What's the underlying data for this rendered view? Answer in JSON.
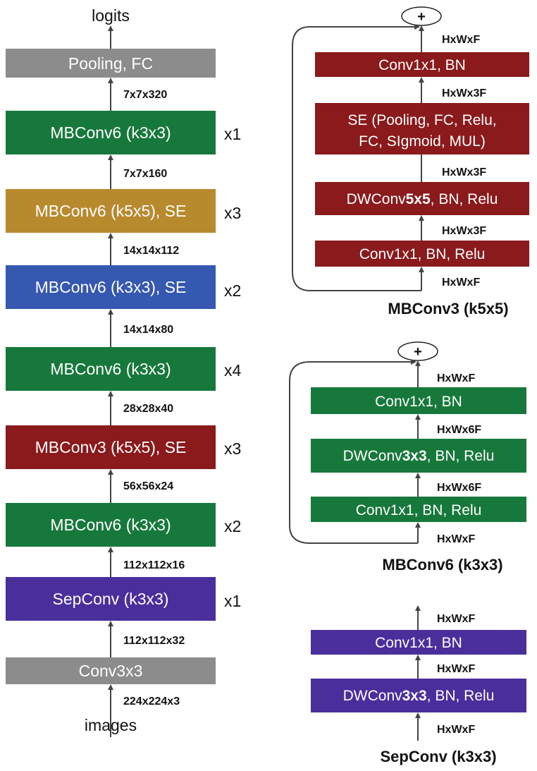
{
  "colors": {
    "gray": "#8c8c8c",
    "green": "#17783c",
    "gold": "#b88a2e",
    "blue": "#3558b0",
    "red": "#8a1a1c",
    "purple": "#4a2e9c"
  },
  "main": {
    "output": "logits",
    "input": "images",
    "blocks": [
      {
        "label": "Pooling, FC",
        "repeat": ""
      },
      {
        "label": "MBConv6 (k3x3)",
        "repeat": "x1"
      },
      {
        "label": "MBConv6 (k5x5), SE",
        "repeat": "x3"
      },
      {
        "label": "MBConv6 (k3x3), SE",
        "repeat": "x2"
      },
      {
        "label": "MBConv6 (k3x3)",
        "repeat": "x4"
      },
      {
        "label": "MBConv3 (k5x5), SE",
        "repeat": "x3"
      },
      {
        "label": "MBConv6 (k3x3)",
        "repeat": "x2"
      },
      {
        "label": "SepConv (k3x3)",
        "repeat": "x1"
      },
      {
        "label": "Conv3x3",
        "repeat": ""
      }
    ],
    "dims": [
      "7x7x320",
      "7x7x160",
      "14x14x112",
      "14x14x80",
      "28x28x40",
      "56x56x24",
      "112x112x16",
      "112x112x32",
      "224x224x3"
    ]
  },
  "mbconv3": {
    "title": "MBConv3 (k5x5)",
    "plus": "+",
    "layers": {
      "l4": "Conv1x1, BN",
      "l3a": "SE (Pooling, FC, Relu,",
      "l3b": "FC, SIgmoid, MUL)",
      "l2_pre": "DWConv",
      "l2_bold": "5x5",
      "l2_post": ", BN, Relu",
      "l1": "Conv1x1, BN, Relu"
    },
    "dims": {
      "out": "HxWxF",
      "d3_pre": "HxWx",
      "d3_bold": "3F",
      "in": "HxWxF"
    }
  },
  "mbconv6": {
    "title": "MBConv6 (k3x3)",
    "plus": "+",
    "layers": {
      "l3": "Conv1x1, BN",
      "l2_pre": "DWConv",
      "l2_bold": "3x3",
      "l2_post": ", BN, Relu",
      "l1": "Conv1x1, BN, Relu"
    },
    "dims": {
      "out": "HxWxF",
      "d6_pre": "HxWx",
      "d6_bold": "6F",
      "in": "HxWxF"
    }
  },
  "sepconv": {
    "title": "SepConv (k3x3)",
    "layers": {
      "l2": "Conv1x1, BN",
      "l1_pre": "DWConv",
      "l1_bold": "3x3",
      "l1_post": ", BN, Relu"
    },
    "dims": {
      "out": "HxWxF",
      "mid": "HxWxF",
      "in": "HxWxF"
    }
  }
}
